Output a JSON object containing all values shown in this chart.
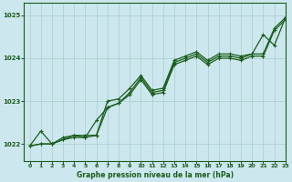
{
  "title": "Graphe pression niveau de la mer (hPa)",
  "bg_color": "#cce8ee",
  "grid_color": "#aacccc",
  "line_color": "#1a5c1a",
  "xlim": [
    -0.5,
    23
  ],
  "ylim": [
    1021.6,
    1025.3
  ],
  "yticks": [
    1022,
    1023,
    1024,
    1025
  ],
  "xticks": [
    0,
    1,
    2,
    3,
    4,
    5,
    6,
    7,
    8,
    9,
    10,
    11,
    12,
    13,
    14,
    15,
    16,
    17,
    18,
    19,
    20,
    21,
    22,
    23
  ],
  "series1": {
    "x": [
      0,
      1,
      2,
      3,
      4,
      5,
      6,
      7,
      8,
      9,
      10,
      11,
      12,
      13,
      14,
      15,
      16,
      17,
      18,
      19,
      20,
      21,
      22,
      23
    ],
    "y": [
      1021.95,
      1022.3,
      1022.0,
      1022.1,
      1022.2,
      1022.15,
      1022.55,
      1022.85,
      1022.95,
      1023.2,
      1023.55,
      1023.2,
      1023.25,
      1023.9,
      1024.0,
      1024.1,
      1023.9,
      1024.05,
      1024.05,
      1024.0,
      1024.1,
      1024.1,
      1024.7,
      1024.95
    ]
  },
  "series2": {
    "x": [
      0,
      1,
      2,
      3,
      4,
      5,
      6,
      7,
      8,
      9,
      10,
      11,
      12,
      13,
      14,
      15,
      16,
      17,
      18,
      19,
      20,
      21,
      22,
      23
    ],
    "y": [
      1021.95,
      1022.0,
      1022.0,
      1022.15,
      1022.2,
      1022.2,
      1022.2,
      1023.0,
      1023.05,
      1023.3,
      1023.6,
      1023.25,
      1023.3,
      1023.95,
      1024.05,
      1024.15,
      1023.95,
      1024.1,
      1024.1,
      1024.05,
      1024.1,
      1024.55,
      1024.3,
      1024.95
    ]
  },
  "series3": {
    "x": [
      0,
      1,
      2,
      3,
      4,
      5,
      6,
      7,
      8,
      9,
      10,
      11,
      12,
      13,
      14,
      15,
      16,
      17,
      18,
      19,
      20,
      21,
      22,
      23
    ],
    "y": [
      1021.95,
      1022.0,
      1022.0,
      1022.1,
      1022.15,
      1022.15,
      1022.2,
      1022.85,
      1022.95,
      1023.15,
      1023.5,
      1023.15,
      1023.2,
      1023.85,
      1023.95,
      1024.05,
      1023.85,
      1024.0,
      1024.0,
      1023.95,
      1024.05,
      1024.05,
      1024.65,
      1024.9
    ]
  }
}
